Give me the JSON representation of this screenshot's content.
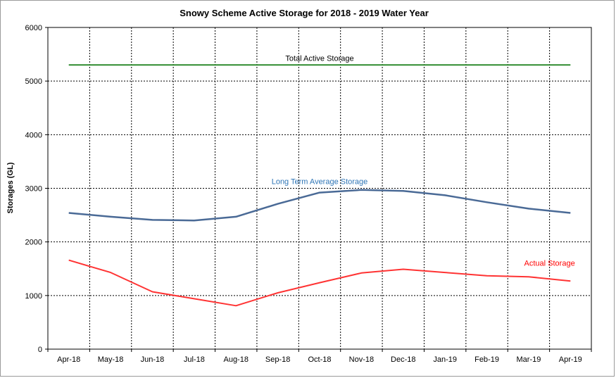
{
  "chart_data": {
    "type": "line",
    "title": "Snowy Scheme Active  Storage for 2018 - 2019 Water Year",
    "xlabel": "",
    "ylabel": "Storages (GL)",
    "ylim": [
      0,
      6000
    ],
    "yticks": [
      0,
      1000,
      2000,
      3000,
      4000,
      5000,
      6000
    ],
    "grid": true,
    "categories": [
      "Apr-18",
      "May-18",
      "Jun-18",
      "Jul-18",
      "Aug-18",
      "Sep-18",
      "Oct-18",
      "Nov-18",
      "Dec-18",
      "Jan-19",
      "Feb-19",
      "Mar-19",
      "Apr-19"
    ],
    "series": [
      {
        "name": "Total Active Storage",
        "color": "#2e8b2e",
        "values": [
          5300,
          5300,
          5300,
          5300,
          5300,
          5300,
          5300,
          5300,
          5300,
          5300,
          5300,
          5300,
          5300
        ]
      },
      {
        "name": "Long Term  Average  Storage",
        "color": "#4a6a96",
        "values": [
          2540,
          2470,
          2410,
          2400,
          2470,
          2710,
          2920,
          2970,
          2950,
          2870,
          2740,
          2620,
          2540
        ]
      },
      {
        "name": "Actual Storage",
        "color": "#ff3333",
        "values": [
          1660,
          1430,
          1070,
          940,
          810,
          1050,
          1240,
          1420,
          1490,
          1430,
          1370,
          1350,
          1270
        ]
      }
    ],
    "annotations": [
      {
        "series": 0,
        "text": "Total  Active Storage",
        "at_index": 6,
        "at_value": 5300,
        "color": "#000000"
      },
      {
        "series": 1,
        "text": "Long Term  Average  Storage",
        "at_index": 6,
        "at_value": 3000,
        "color": "#2e75b6"
      },
      {
        "series": 2,
        "text": "Actual Storage",
        "at_index": 11.5,
        "at_value": 1480,
        "color": "#ff0000"
      }
    ]
  }
}
